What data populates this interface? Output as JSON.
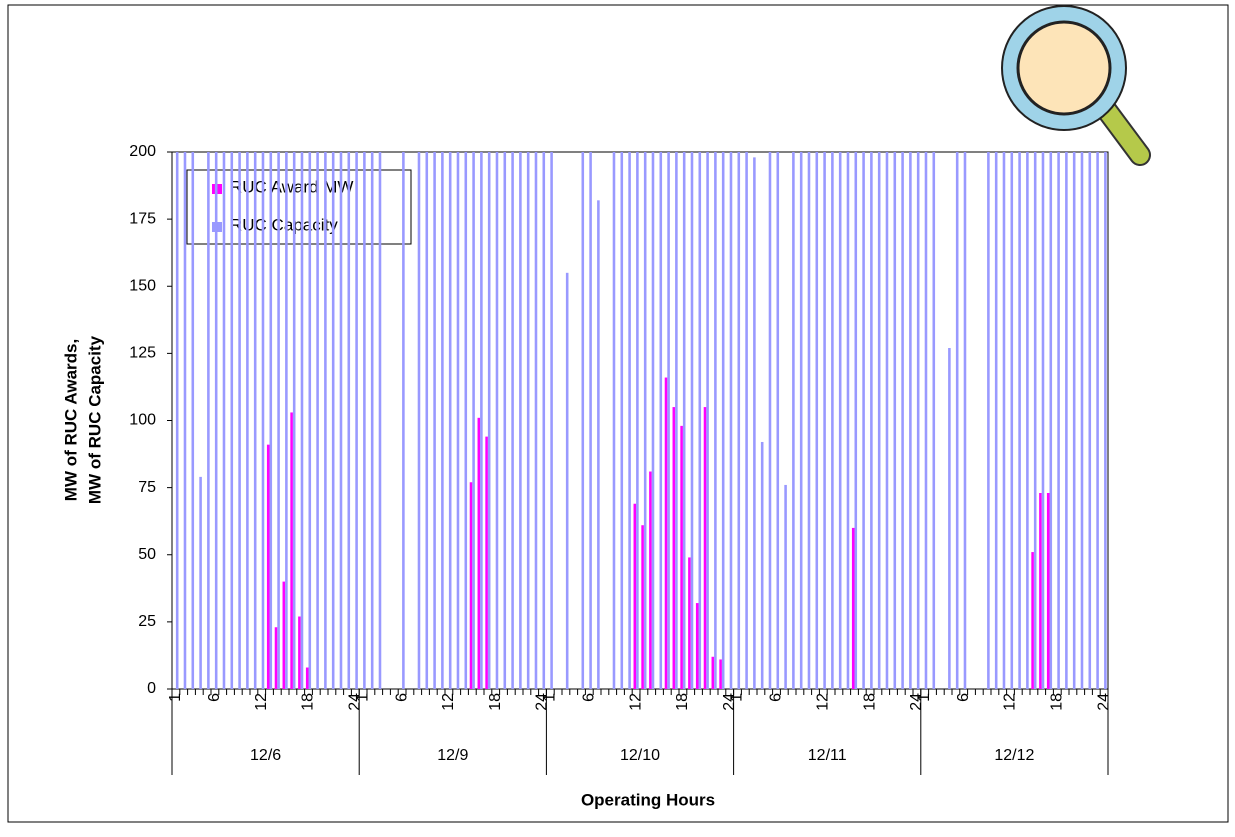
{
  "chart_data": {
    "type": "bar",
    "y_label": [
      "MW of RUC Awards,",
      "MW of RUC Capacity"
    ],
    "x_label": "Operating Hours",
    "groups": [
      "12/6",
      "12/9",
      "12/10",
      "12/11",
      "12/12"
    ],
    "categories": [
      "1",
      null,
      null,
      null,
      null,
      "6",
      null,
      null,
      null,
      null,
      null,
      "12",
      null,
      null,
      null,
      null,
      null,
      "18",
      null,
      null,
      null,
      null,
      null,
      "24",
      "1",
      null,
      null,
      null,
      null,
      "6",
      null,
      null,
      null,
      null,
      null,
      "12",
      null,
      null,
      null,
      null,
      null,
      "18",
      null,
      null,
      null,
      null,
      null,
      "24",
      "1",
      null,
      null,
      null,
      null,
      "6",
      null,
      null,
      null,
      null,
      null,
      "12",
      null,
      null,
      null,
      null,
      null,
      "18",
      null,
      null,
      null,
      null,
      null,
      "24",
      "1",
      null,
      null,
      null,
      null,
      "6",
      null,
      null,
      null,
      null,
      null,
      "12",
      null,
      null,
      null,
      null,
      null,
      "18",
      null,
      null,
      null,
      null,
      null,
      "24",
      "1",
      null,
      null,
      null,
      null,
      "6",
      null,
      null,
      null,
      null,
      null,
      "12",
      null,
      null,
      null,
      null,
      null,
      "18",
      null,
      null,
      null,
      null,
      null,
      "24"
    ],
    "series": [
      {
        "name": "RUC Award MW",
        "color": "#ff00ff",
        "values": [
          0,
          0,
          0,
          0,
          0,
          0,
          0,
          0,
          0,
          0,
          0,
          0,
          91,
          23,
          40,
          103,
          27,
          8,
          0,
          0,
          0,
          0,
          0,
          0,
          0,
          0,
          0,
          0,
          0,
          0,
          0,
          0,
          0,
          0,
          0,
          0,
          0,
          0,
          77,
          101,
          94,
          0,
          0,
          0,
          0,
          0,
          0,
          0,
          0,
          0,
          0,
          0,
          0,
          0,
          0,
          0,
          0,
          0,
          0,
          69,
          61,
          81,
          0,
          116,
          105,
          98,
          49,
          32,
          105,
          12,
          11,
          0,
          0,
          0,
          0,
          0,
          0,
          0,
          0,
          0,
          0,
          0,
          0,
          0,
          0,
          0,
          0,
          60,
          0,
          0,
          0,
          0,
          0,
          0,
          0,
          0,
          0,
          0,
          0,
          0,
          0,
          0,
          0,
          0,
          0,
          0,
          0,
          0,
          0,
          0,
          51,
          73,
          73,
          0,
          0,
          0,
          0,
          0,
          0,
          0
        ]
      },
      {
        "name": "RUC Capacity",
        "color": "#9999ff",
        "values": [
          200,
          200,
          200,
          79,
          200,
          200,
          200,
          200,
          200,
          200,
          200,
          200,
          200,
          200,
          200,
          200,
          200,
          200,
          200,
          200,
          200,
          200,
          200,
          200,
          200,
          200,
          200,
          0,
          0,
          200,
          0,
          200,
          200,
          200,
          200,
          200,
          200,
          200,
          200,
          200,
          200,
          200,
          200,
          200,
          200,
          200,
          200,
          200,
          200,
          0,
          155,
          0,
          200,
          200,
          182,
          0,
          200,
          200,
          200,
          200,
          200,
          200,
          200,
          200,
          200,
          200,
          200,
          200,
          200,
          200,
          200,
          200,
          200,
          200,
          198,
          92,
          200,
          200,
          76,
          200,
          200,
          200,
          200,
          200,
          200,
          200,
          200,
          200,
          200,
          200,
          200,
          200,
          200,
          200,
          200,
          200,
          200,
          200,
          0,
          127,
          200,
          200,
          0,
          0,
          200,
          200,
          200,
          200,
          200,
          200,
          200,
          200,
          200,
          200,
          200,
          200,
          200,
          200,
          200,
          200
        ]
      }
    ],
    "ylim": [
      0,
      200
    ],
    "yticks": [
      0,
      25,
      50,
      75,
      100,
      125,
      150,
      175,
      200
    ]
  }
}
